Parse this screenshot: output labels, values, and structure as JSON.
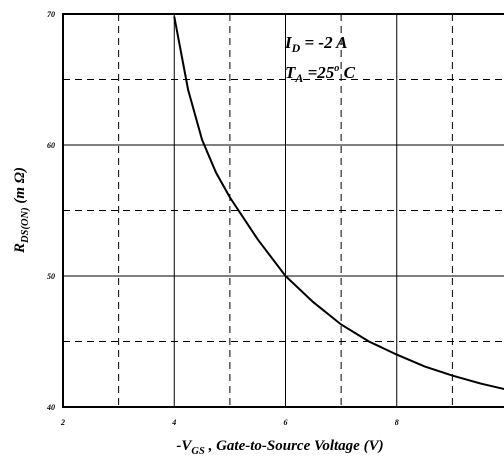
{
  "chart_data": {
    "type": "line",
    "x_label": {
      "main": "-V",
      "sub": "GS",
      "rest": " , Gate-to-Source Voltage (V)"
    },
    "y_label": {
      "main": "R",
      "sub": "DS(ON)",
      "rest": " (m Ω)"
    },
    "annotations": [
      {
        "main": "I",
        "sub": "D",
        "rest": " = -2 A"
      },
      {
        "main": "T",
        "sub": "A",
        "rest": " =25",
        "sup": "o",
        "tail": " C"
      }
    ],
    "x": [
      4,
      4.25,
      4.5,
      4.75,
      5,
      5.5,
      6,
      6.5,
      7,
      7.5,
      8,
      8.5,
      9,
      9.5,
      10
    ],
    "series": [
      {
        "color": "#000000",
        "values": [
          69.8,
          64.2,
          60.4,
          57.9,
          56.0,
          52.8,
          50.0,
          48.0,
          46.3,
          45.0,
          44.0,
          43.1,
          42.4,
          41.8,
          41.3
        ]
      }
    ],
    "xlim": [
      2,
      10
    ],
    "xticks": [
      2,
      4,
      6,
      8,
      10
    ],
    "xminor": [
      3,
      5,
      7,
      9
    ],
    "ylim": [
      40,
      70
    ],
    "yticks": [
      40,
      50,
      60,
      70
    ],
    "yminor": [
      45,
      55,
      65
    ],
    "grid": true
  }
}
